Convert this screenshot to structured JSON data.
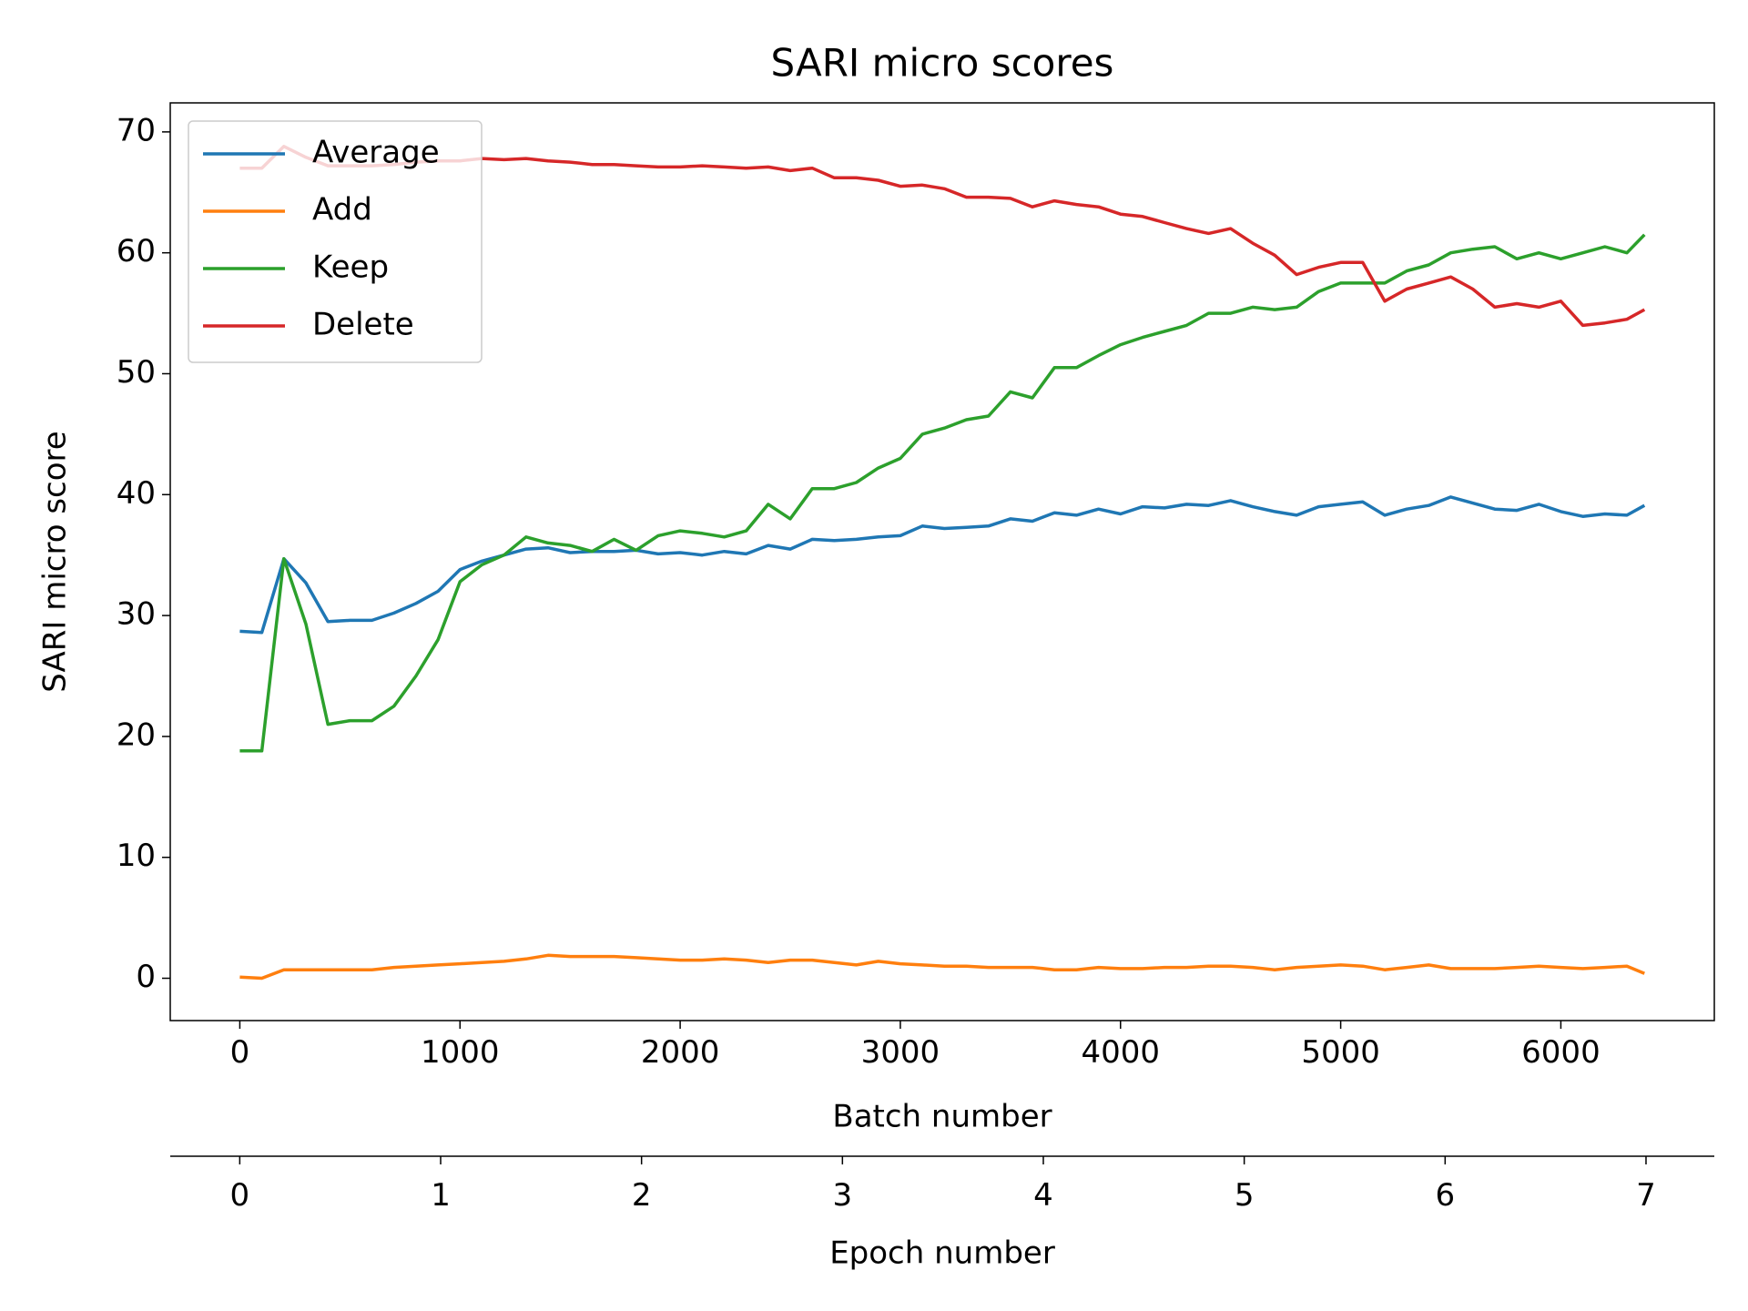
{
  "chart_data": {
    "type": "line",
    "title": "SARI micro scores",
    "xlabel": "Batch number",
    "ylabel": "SARI micro score",
    "x": [
      0,
      100,
      200,
      300,
      400,
      500,
      600,
      700,
      800,
      900,
      1000,
      1100,
      1200,
      1300,
      1400,
      1500,
      1600,
      1700,
      1800,
      1900,
      2000,
      2100,
      2200,
      2300,
      2400,
      2500,
      2600,
      2700,
      2800,
      2900,
      3000,
      3100,
      3200,
      3300,
      3400,
      3500,
      3600,
      3700,
      3800,
      3900,
      4000,
      4100,
      4200,
      4300,
      4400,
      4500,
      4600,
      4700,
      4800,
      4900,
      5000,
      5100,
      5200,
      5300,
      5400,
      5500,
      5600,
      5700,
      5800,
      5900,
      6000,
      6100,
      6200,
      6300,
      6380
    ],
    "series": [
      {
        "name": "Average",
        "color": "#1f77b4",
        "values": [
          28.7,
          28.6,
          34.7,
          32.7,
          29.5,
          29.6,
          29.6,
          30.2,
          31,
          32,
          33.8,
          34.5,
          35,
          35.5,
          35.6,
          35.2,
          35.3,
          35.3,
          35.4,
          35.1,
          35.2,
          35,
          35.3,
          35.1,
          35.8,
          35.5,
          36.3,
          36.2,
          36.3,
          36.5,
          36.6,
          37.4,
          37.2,
          37.3,
          37.4,
          38,
          37.8,
          38.5,
          38.3,
          38.8,
          38.4,
          39,
          38.9,
          39.2,
          39.1,
          39.5,
          39,
          38.6,
          38.3,
          39,
          39.2,
          39.4,
          38.3,
          38.8,
          39.1,
          39.8,
          39.3,
          38.8,
          38.7,
          39.2,
          38.6,
          38.2,
          38.4,
          38.3,
          39.1
        ]
      },
      {
        "name": "Add",
        "color": "#ff7f0e",
        "values": [
          0.1,
          0,
          0.7,
          0.7,
          0.7,
          0.7,
          0.7,
          0.9,
          1.0,
          1.1,
          1.2,
          1.3,
          1.4,
          1.6,
          1.9,
          1.8,
          1.8,
          1.8,
          1.7,
          1.6,
          1.5,
          1.5,
          1.6,
          1.5,
          1.3,
          1.5,
          1.5,
          1.3,
          1.1,
          1.4,
          1.2,
          1.1,
          1.0,
          1.0,
          0.9,
          0.9,
          0.9,
          0.7,
          0.7,
          0.9,
          0.8,
          0.8,
          0.9,
          0.9,
          1.0,
          1.0,
          0.9,
          0.7,
          0.9,
          1.0,
          1.1,
          1.0,
          0.7,
          0.9,
          1.1,
          0.8,
          0.8,
          0.8,
          0.9,
          1.0,
          0.9,
          0.8,
          0.9,
          1.0,
          0.4
        ]
      },
      {
        "name": "Keep",
        "color": "#2ca02c",
        "values": [
          18.8,
          18.8,
          34.7,
          29.3,
          21,
          21.3,
          21.3,
          22.5,
          25,
          28,
          32.8,
          34.2,
          35,
          36.5,
          36,
          35.8,
          35.3,
          36.3,
          35.4,
          36.6,
          37,
          36.8,
          36.5,
          37,
          39.2,
          38,
          40.5,
          40.5,
          41,
          42.2,
          43,
          45,
          45.5,
          46.2,
          46.5,
          48.5,
          48,
          50.5,
          50.5,
          51.5,
          52.4,
          53,
          53.5,
          54,
          55,
          55,
          55.5,
          55.3,
          55.5,
          56.8,
          57.5,
          57.5,
          57.5,
          58.5,
          59,
          60,
          60.3,
          60.5,
          59.5,
          60,
          59.5,
          60,
          60.5,
          60,
          61.5
        ]
      },
      {
        "name": "Delete",
        "color": "#d62728",
        "values": [
          67,
          67,
          68.8,
          67.9,
          67.2,
          67.2,
          67.2,
          67.3,
          67.5,
          67.6,
          67.6,
          67.8,
          67.7,
          67.8,
          67.6,
          67.5,
          67.3,
          67.3,
          67.2,
          67.1,
          67.1,
          67.2,
          67.1,
          67,
          67.1,
          66.8,
          67,
          66.2,
          66.2,
          66,
          65.5,
          65.6,
          65.3,
          64.6,
          64.6,
          64.5,
          63.8,
          64.3,
          64,
          63.8,
          63.2,
          63,
          62.5,
          62,
          61.6,
          62,
          60.8,
          59.8,
          58.2,
          58.8,
          59.2,
          59.2,
          56,
          57,
          57.5,
          58,
          57,
          55.5,
          55.8,
          55.5,
          56,
          54,
          54.2,
          54.5,
          55.3
        ]
      }
    ],
    "xlim": [
      -316,
      6697
    ],
    "xticks": [
      0,
      1000,
      2000,
      3000,
      4000,
      5000,
      6000
    ],
    "ylim": [
      -3.5,
      72.4
    ],
    "yticks": [
      0,
      10,
      20,
      30,
      40,
      50,
      60,
      70
    ],
    "legend": "upper left",
    "secondary_x_axis": {
      "label": "Epoch number",
      "xlim": [
        -0.346,
        7.34
      ],
      "xticks": [
        0,
        1,
        2,
        3,
        4,
        5,
        6,
        7
      ]
    }
  }
}
